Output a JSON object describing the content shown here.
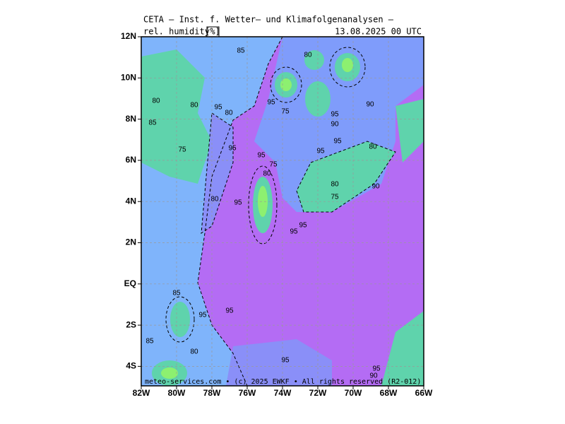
{
  "map": {
    "title": "CETA — Inst. f. Wetter— und Klimafolgenanalysen —",
    "variable": "rel. humidity",
    "unit": "[%]",
    "valid_time": "13.08.2025 00 UTC",
    "footer": "meteo-services.com • (c) 2025 EWKF • All rights reserved (R2-012)",
    "lat_labels": [
      "12N",
      "10N",
      "8N",
      "6N",
      "4N",
      "2N",
      "EQ",
      "2S",
      "4S"
    ],
    "lon_labels": [
      "82W",
      "80W",
      "78W",
      "76W",
      "74W",
      "72W",
      "70W",
      "68W",
      "66W"
    ],
    "contour_labels": [
      "85",
      "80",
      "80",
      "80",
      "95",
      "80",
      "85",
      "95",
      "75",
      "95",
      "90",
      "90",
      "75",
      "95",
      "95",
      "95",
      "95",
      "80",
      "75",
      "80",
      "80",
      "90",
      "75",
      "80",
      "95",
      "95",
      "95",
      "85",
      "95",
      "95",
      "85",
      "80",
      "95",
      "95",
      "90"
    ]
  }
}
